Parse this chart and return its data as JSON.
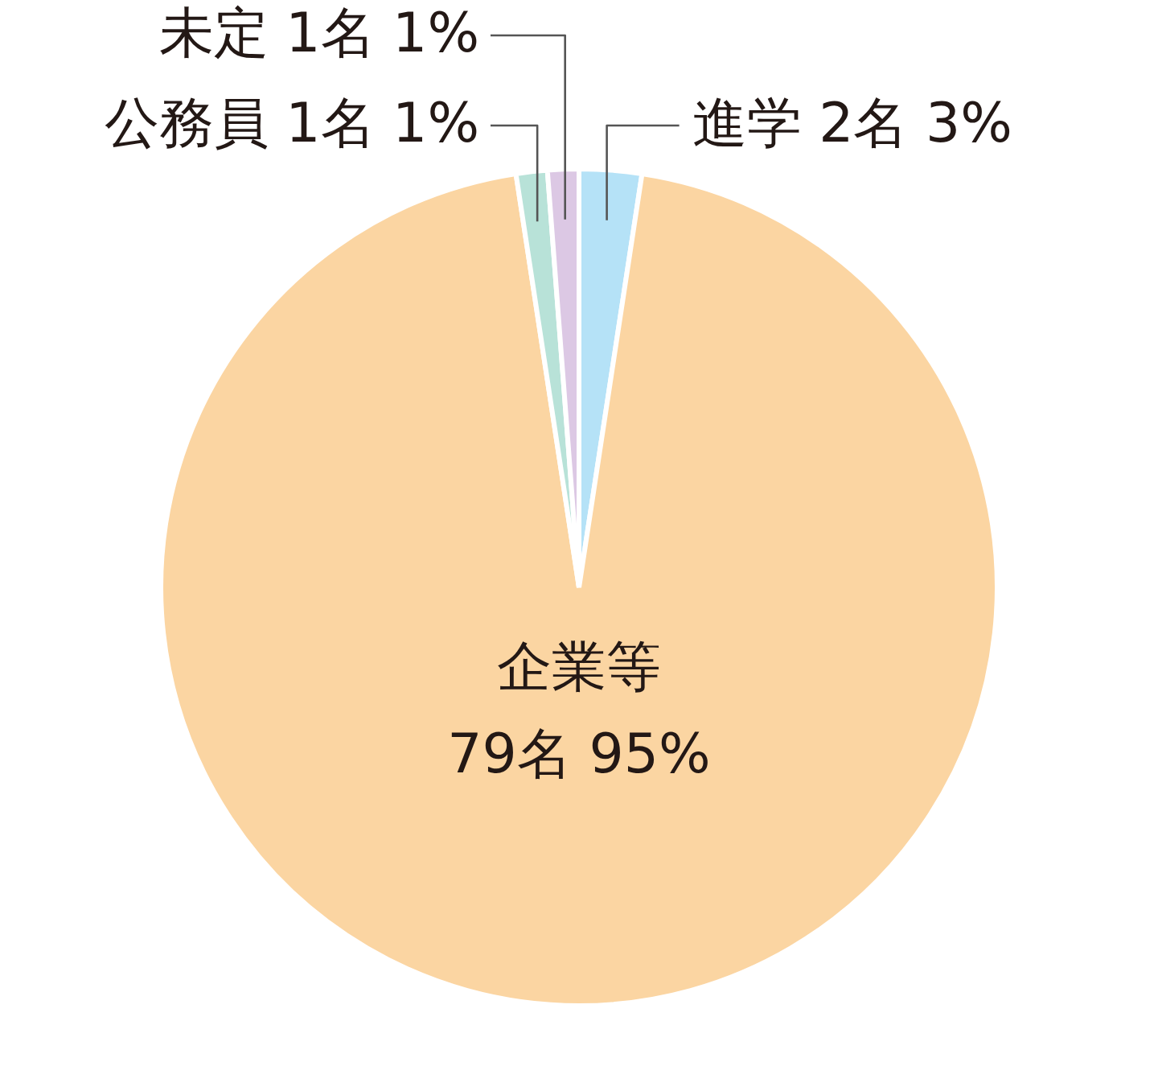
{
  "chart_data": {
    "type": "pie",
    "categories": [
      "進学",
      "企業等",
      "公務員",
      "未定"
    ],
    "values": [
      2,
      79,
      1,
      1
    ],
    "value_labels": [
      "2名 3%",
      "79名 95%",
      "1名 1%",
      "1名 1%"
    ],
    "colors": [
      "#b5e2f7",
      "#fbd5a2",
      "#b8e2d8",
      "#dcc8e4"
    ]
  }
}
